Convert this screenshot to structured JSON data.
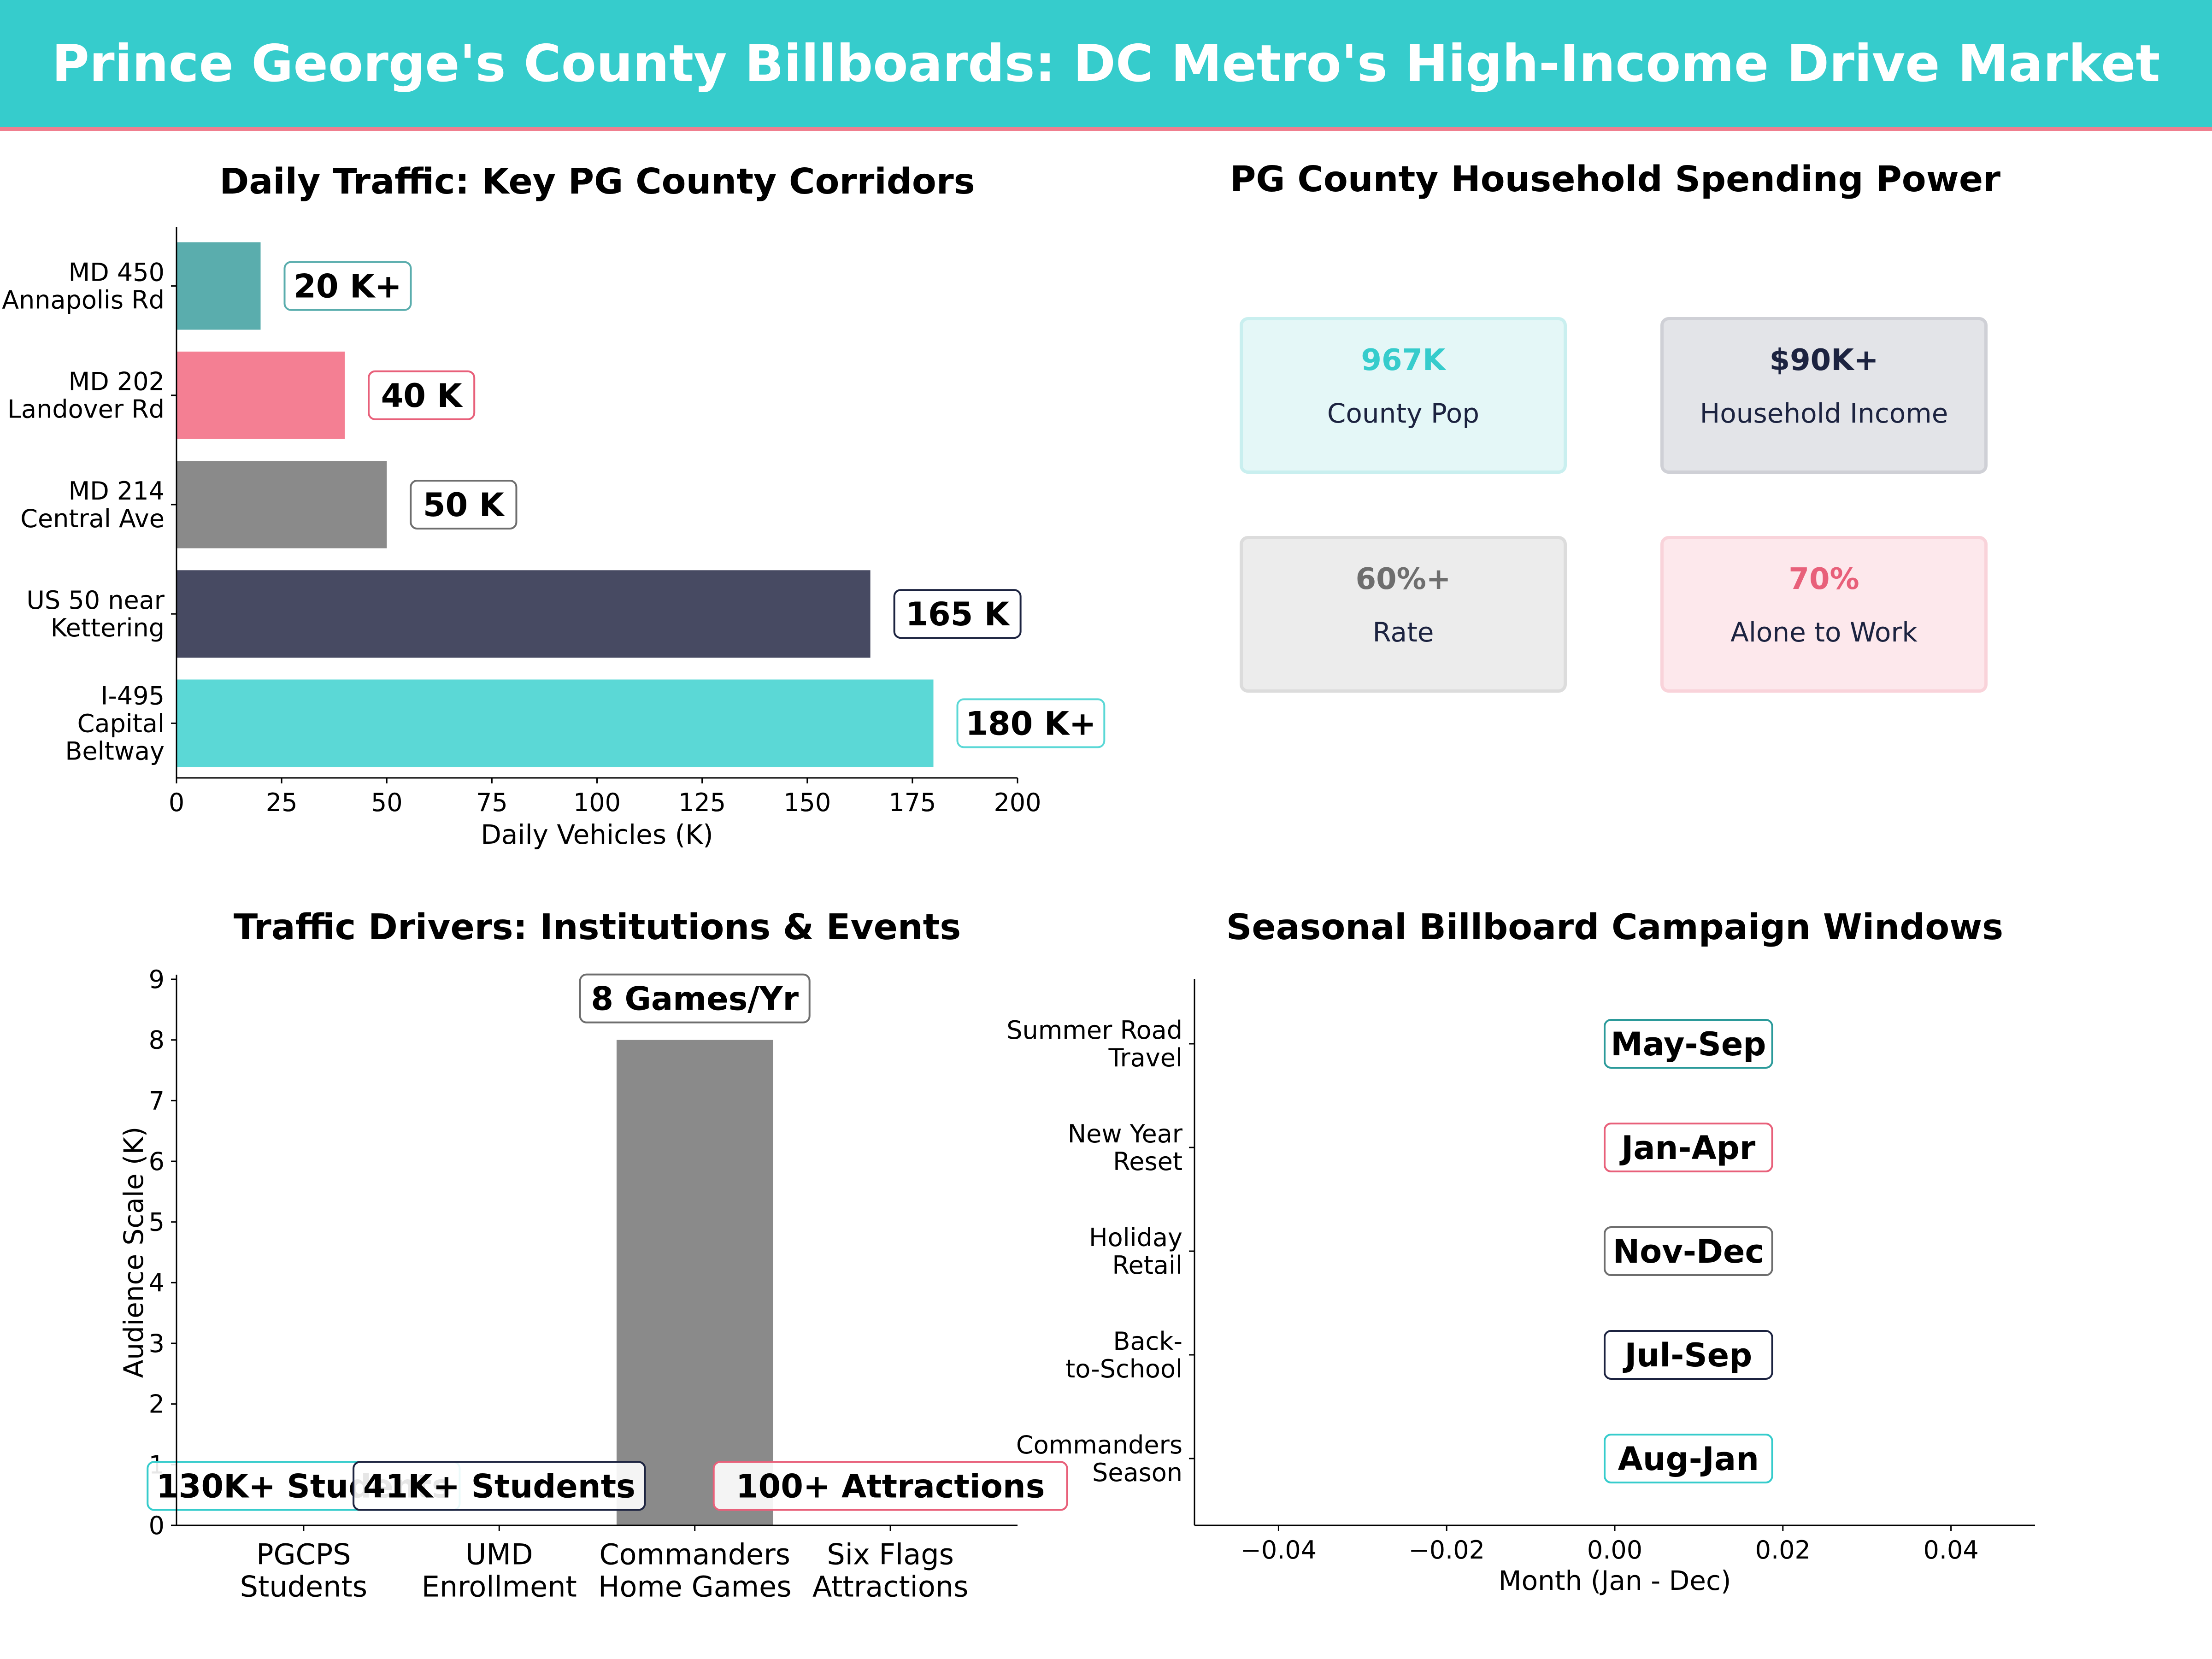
{
  "header": {
    "title": "Prince George's County Billboards: DC Metro's High-Income Drive Market",
    "bg_color": "#36cccc",
    "line_color": "#f07f8f"
  },
  "traffic": {
    "title": "Daily Traffic: Key PG County Corridors",
    "xlabel": "Daily Vehicles (K)",
    "xlim": [
      0,
      200
    ],
    "xticks": [
      "0",
      "25",
      "50",
      "75",
      "100",
      "125",
      "150",
      "175",
      "200"
    ]
  },
  "spending": {
    "title": "PG County Household Spending Power",
    "cards": [
      {
        "value": "967K",
        "label": "County Pop",
        "color": "#36cccc",
        "bg": "#e4f7f7",
        "border": "#c9efef"
      },
      {
        "value": "$90K+",
        "label": "Household Income",
        "color": "#1c2340",
        "bg": "#e3e4e8",
        "border": "#cfd0d6"
      },
      {
        "value": "60%+",
        "label": "Rate",
        "color": "#6e6e6e",
        "bg": "#ececec",
        "border": "#dcdcdc"
      },
      {
        "value": "70%",
        "label": "Alone to Work",
        "color": "#e8607a",
        "bg": "#fde8ec",
        "border": "#f9d3da"
      }
    ]
  },
  "drivers": {
    "title": "Traffic Drivers: Institutions & Events",
    "ylabel": "Audience Scale (K)",
    "ylim": [
      0,
      9
    ],
    "yticks": [
      "0",
      "1",
      "2",
      "3",
      "4",
      "5",
      "6",
      "7",
      "8",
      "9"
    ]
  },
  "seasonal": {
    "title": "Seasonal Billboard Campaign Windows",
    "xlabel": "Month (Jan - Dec)",
    "xlim": [
      -0.05,
      0.05
    ],
    "xticks": [
      "−0.04",
      "−0.02",
      "0.00",
      "0.02",
      "0.04"
    ]
  },
  "chart_data": [
    {
      "type": "bar",
      "orientation": "horizontal",
      "title": "Daily Traffic: Key PG County Corridors",
      "xlabel": "Daily Vehicles (K)",
      "xlim": [
        0,
        200
      ],
      "categories": [
        {
          "lines": [
            "MD 450",
            "Annapolis Rd"
          ]
        },
        {
          "lines": [
            "MD 202",
            "Landover Rd"
          ]
        },
        {
          "lines": [
            "MD 214",
            "Central Ave"
          ]
        },
        {
          "lines": [
            "US 50 near",
            "Kettering"
          ]
        },
        {
          "lines": [
            "I-495",
            "Capital",
            "Beltway"
          ]
        }
      ],
      "values": [
        20,
        40,
        50,
        165,
        180
      ],
      "labels": [
        "20 K+",
        "40 K",
        "50 K",
        "165 K",
        "180 K+"
      ],
      "colors": [
        "#5aadad",
        "#f47f93",
        "#8a8a8a",
        "#474a62",
        "#5bd8d6"
      ],
      "label_borders": [
        "#5aadad",
        "#e8607a",
        "#6e6e6e",
        "#1c2340",
        "#5bd8d6"
      ]
    },
    {
      "type": "bar",
      "title": "Traffic Drivers: Institutions & Events",
      "ylabel": "Audience Scale (K)",
      "ylim": [
        0,
        9
      ],
      "categories": [
        {
          "lines": [
            "PGCPS",
            "Students"
          ]
        },
        {
          "lines": [
            "UMD",
            "Enrollment"
          ]
        },
        {
          "lines": [
            "Commanders",
            "Home Games"
          ]
        },
        {
          "lines": [
            "Six Flags",
            "Attractions"
          ]
        }
      ],
      "values": [
        0,
        0,
        8,
        0
      ],
      "labels": [
        "130K+ Students",
        "41K+ Students",
        "8 Games/Yr",
        "100+ Attractions"
      ],
      "colors": [
        "#5bd8d6",
        "#474a62",
        "#8a8a8a",
        "#f47f93"
      ],
      "label_borders": [
        "#36cccc",
        "#1c2340",
        "#6e6e6e",
        "#e8607a"
      ]
    },
    {
      "type": "scatter",
      "title": "Seasonal Billboard Campaign Windows",
      "xlabel": "Month (Jan - Dec)",
      "xlim": [
        -0.05,
        0.05
      ],
      "categories": [
        {
          "lines": [
            "Commanders",
            "Season"
          ]
        },
        {
          "lines": [
            "Back-",
            "to-School"
          ]
        },
        {
          "lines": [
            "Holiday",
            "Retail"
          ]
        },
        {
          "lines": [
            "New Year",
            "Reset"
          ]
        },
        {
          "lines": [
            "Summer Road",
            "Travel"
          ]
        }
      ],
      "x": [
        0,
        0,
        0,
        0,
        0
      ],
      "labels": [
        "Aug-Jan",
        "Jul-Sep",
        "Nov-Dec",
        "Jan-Apr",
        "May-Sep"
      ],
      "label_borders": [
        "#36cccc",
        "#1c2340",
        "#6e6e6e",
        "#e8607a",
        "#2b9a9a"
      ]
    }
  ]
}
